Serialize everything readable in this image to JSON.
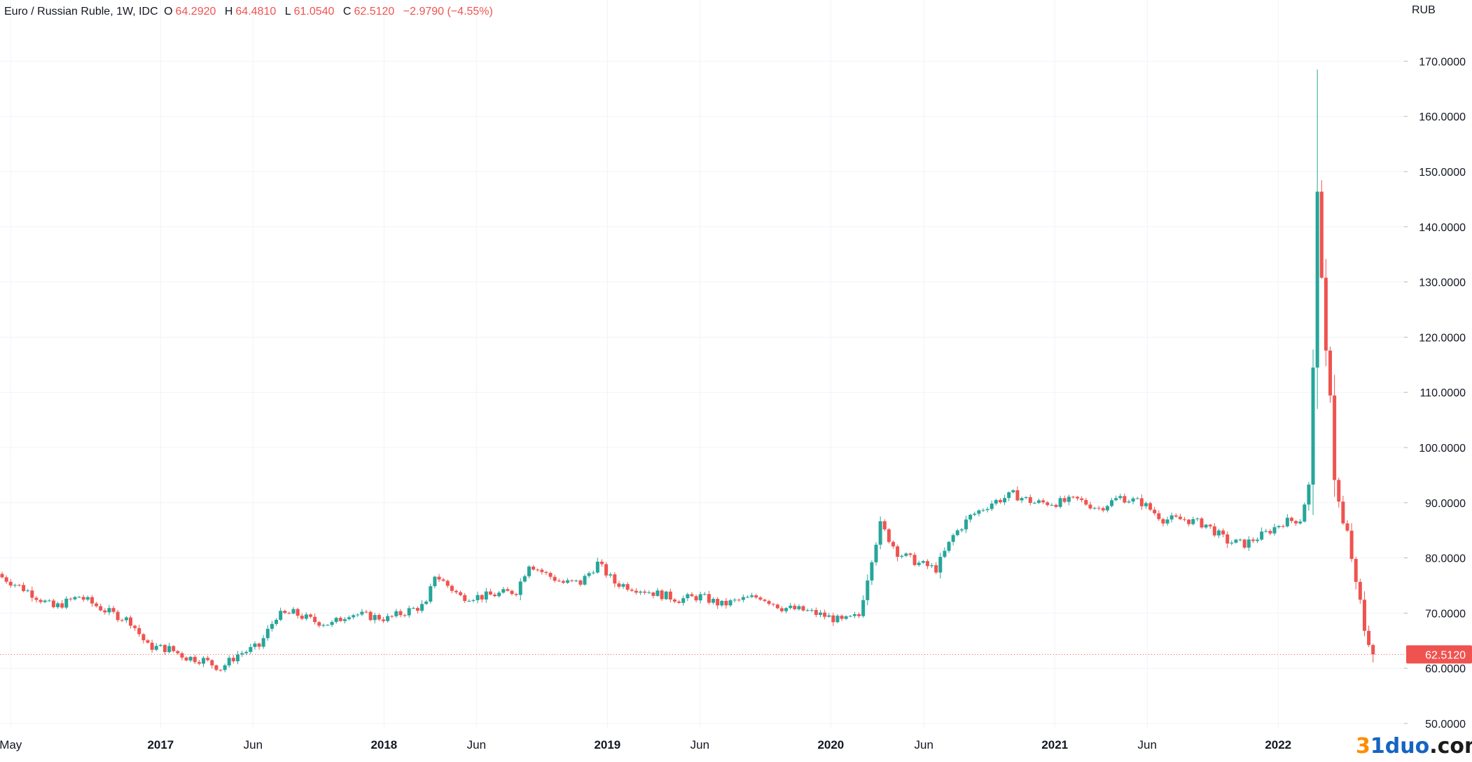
{
  "legend": {
    "symbol": "Euro / Russian Ruble, 1W, IDC",
    "open_label": "O",
    "open": "64.2920",
    "high_label": "H",
    "high": "64.4810",
    "low_label": "L",
    "low": "61.0540",
    "close_label": "C",
    "close": "62.5120",
    "change": "−2.9790 (−4.55%)"
  },
  "currency_label": "RUB",
  "watermark": {
    "prefix": "3",
    "brand": "1duo",
    "suffix": ".com"
  },
  "colors": {
    "up": "#26a69a",
    "down": "#ef5350",
    "grid": "#f0f3fa",
    "text": "#131722",
    "last_price_line": "#ef5350"
  },
  "chart_data": {
    "type": "candlestick",
    "interval": "1W",
    "currency": "RUB",
    "ylim": [
      50,
      175
    ],
    "y_ticks": [
      "50.0000",
      "60.0000",
      "70.0000",
      "80.0000",
      "90.0000",
      "100.0000",
      "110.0000",
      "120.0000",
      "130.0000",
      "140.0000",
      "150.0000",
      "160.0000",
      "170.0000"
    ],
    "x_ticks": [
      {
        "label": "May",
        "date": "2016-05-01",
        "bold": false
      },
      {
        "label": "2017",
        "date": "2017-01-01",
        "bold": true
      },
      {
        "label": "Jun",
        "date": "2017-06-01",
        "bold": false
      },
      {
        "label": "2018",
        "date": "2018-01-01",
        "bold": true
      },
      {
        "label": "Jun",
        "date": "2018-06-01",
        "bold": false
      },
      {
        "label": "2019",
        "date": "2019-01-01",
        "bold": true
      },
      {
        "label": "Jun",
        "date": "2019-06-01",
        "bold": false
      },
      {
        "label": "2020",
        "date": "2020-01-01",
        "bold": true
      },
      {
        "label": "Jun",
        "date": "2020-06-01",
        "bold": false
      },
      {
        "label": "2021",
        "date": "2021-01-01",
        "bold": true
      },
      {
        "label": "Jun",
        "date": "2021-06-01",
        "bold": false
      },
      {
        "label": "2022",
        "date": "2022-01-01",
        "bold": true
      }
    ],
    "last_price": "62.5120",
    "close_path": [
      [
        "2016-04-17",
        76.5
      ],
      [
        "2016-05-29",
        74.0
      ],
      [
        "2016-07-10",
        71.0
      ],
      [
        "2016-08-21",
        73.0
      ],
      [
        "2016-10-02",
        70.5
      ],
      [
        "2016-11-13",
        68.5
      ],
      [
        "2016-12-11",
        64.0
      ],
      [
        "2017-01-15",
        63.5
      ],
      [
        "2017-02-12",
        62.0
      ],
      [
        "2017-03-12",
        61.5
      ],
      [
        "2017-04-09",
        60.0
      ],
      [
        "2017-05-07",
        62.5
      ],
      [
        "2017-06-11",
        64.0
      ],
      [
        "2017-07-09",
        69.5
      ],
      [
        "2017-08-06",
        70.0
      ],
      [
        "2017-09-10",
        68.5
      ],
      [
        "2017-10-08",
        68.0
      ],
      [
        "2017-11-05",
        70.0
      ],
      [
        "2017-12-03",
        69.5
      ],
      [
        "2018-01-07",
        69.0
      ],
      [
        "2018-02-11",
        70.5
      ],
      [
        "2018-03-11",
        71.5
      ],
      [
        "2018-03-25",
        77.0
      ],
      [
        "2018-05-06",
        73.0
      ],
      [
        "2018-06-10",
        73.0
      ],
      [
        "2018-07-08",
        73.5
      ],
      [
        "2018-08-05",
        74.0
      ],
      [
        "2018-08-26",
        79.0
      ],
      [
        "2018-09-23",
        77.0
      ],
      [
        "2018-10-21",
        75.5
      ],
      [
        "2018-11-18",
        75.5
      ],
      [
        "2018-12-16",
        79.0
      ],
      [
        "2019-01-13",
        75.5
      ],
      [
        "2019-02-17",
        74.5
      ],
      [
        "2019-03-24",
        73.5
      ],
      [
        "2019-04-28",
        72.5
      ],
      [
        "2019-06-02",
        73.0
      ],
      [
        "2019-07-07",
        71.5
      ],
      [
        "2019-08-11",
        72.5
      ],
      [
        "2019-09-08",
        73.0
      ],
      [
        "2019-10-13",
        71.0
      ],
      [
        "2019-11-17",
        70.5
      ],
      [
        "2019-12-22",
        69.5
      ],
      [
        "2020-01-19",
        68.5
      ],
      [
        "2020-02-16",
        69.5
      ],
      [
        "2020-03-08",
        80.0
      ],
      [
        "2020-03-22",
        86.0
      ],
      [
        "2020-04-19",
        81.0
      ],
      [
        "2020-05-24",
        79.0
      ],
      [
        "2020-06-21",
        78.0
      ],
      [
        "2020-07-19",
        84.0
      ],
      [
        "2020-08-16",
        87.5
      ],
      [
        "2020-09-20",
        90.0
      ],
      [
        "2020-10-25",
        91.5
      ],
      [
        "2020-11-29",
        90.0
      ],
      [
        "2021-01-03",
        90.0
      ],
      [
        "2021-02-07",
        90.5
      ],
      [
        "2021-03-14",
        89.0
      ],
      [
        "2021-04-18",
        91.0
      ],
      [
        "2021-05-23",
        90.0
      ],
      [
        "2021-06-27",
        87.0
      ],
      [
        "2021-08-01",
        87.0
      ],
      [
        "2021-09-05",
        86.0
      ],
      [
        "2021-10-10",
        83.0
      ],
      [
        "2021-11-07",
        82.5
      ],
      [
        "2021-12-12",
        84.5
      ],
      [
        "2022-01-09",
        86.5
      ],
      [
        "2022-02-06",
        87.0
      ],
      [
        "2022-02-20",
        93.0
      ],
      [
        "2022-02-27",
        114.0
      ],
      [
        "2022-03-06",
        147.0
      ],
      [
        "2022-03-13",
        130.0
      ],
      [
        "2022-03-20",
        117.0
      ],
      [
        "2022-03-27",
        110.0
      ],
      [
        "2022-04-03",
        94.5
      ],
      [
        "2022-04-10",
        90.0
      ],
      [
        "2022-04-17",
        86.0
      ],
      [
        "2022-04-24",
        84.5
      ],
      [
        "2022-05-01",
        80.0
      ],
      [
        "2022-05-08",
        75.0
      ],
      [
        "2022-05-15",
        72.0
      ],
      [
        "2022-05-22",
        67.0
      ],
      [
        "2022-05-29",
        64.8
      ],
      [
        "2022-06-05",
        62.512
      ]
    ]
  }
}
